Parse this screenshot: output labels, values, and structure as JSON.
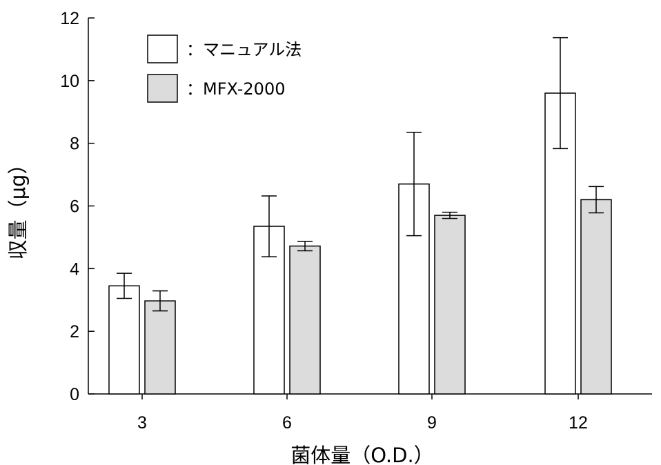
{
  "chart_data": {
    "type": "bar",
    "categories": [
      "3",
      "6",
      "9",
      "12"
    ],
    "series": [
      {
        "name": "：マニュアル法",
        "color": "#ffffff",
        "values": [
          3.45,
          5.35,
          6.7,
          9.6
        ],
        "error": [
          0.4,
          0.97,
          1.65,
          1.77
        ]
      },
      {
        "name": "：MFX-2000",
        "color": "#dcdcdc",
        "values": [
          2.97,
          4.72,
          5.7,
          6.2
        ],
        "error": [
          0.32,
          0.15,
          0.1,
          0.42
        ]
      }
    ],
    "title": "",
    "xlabel": "菌体量（O.D.）",
    "ylabel": "収量（μg）",
    "ylim": [
      0,
      12
    ],
    "yticks": [
      "0",
      "2",
      "4",
      "6",
      "8",
      "10",
      "12"
    ],
    "grid": false,
    "legend_position": "top-left"
  }
}
